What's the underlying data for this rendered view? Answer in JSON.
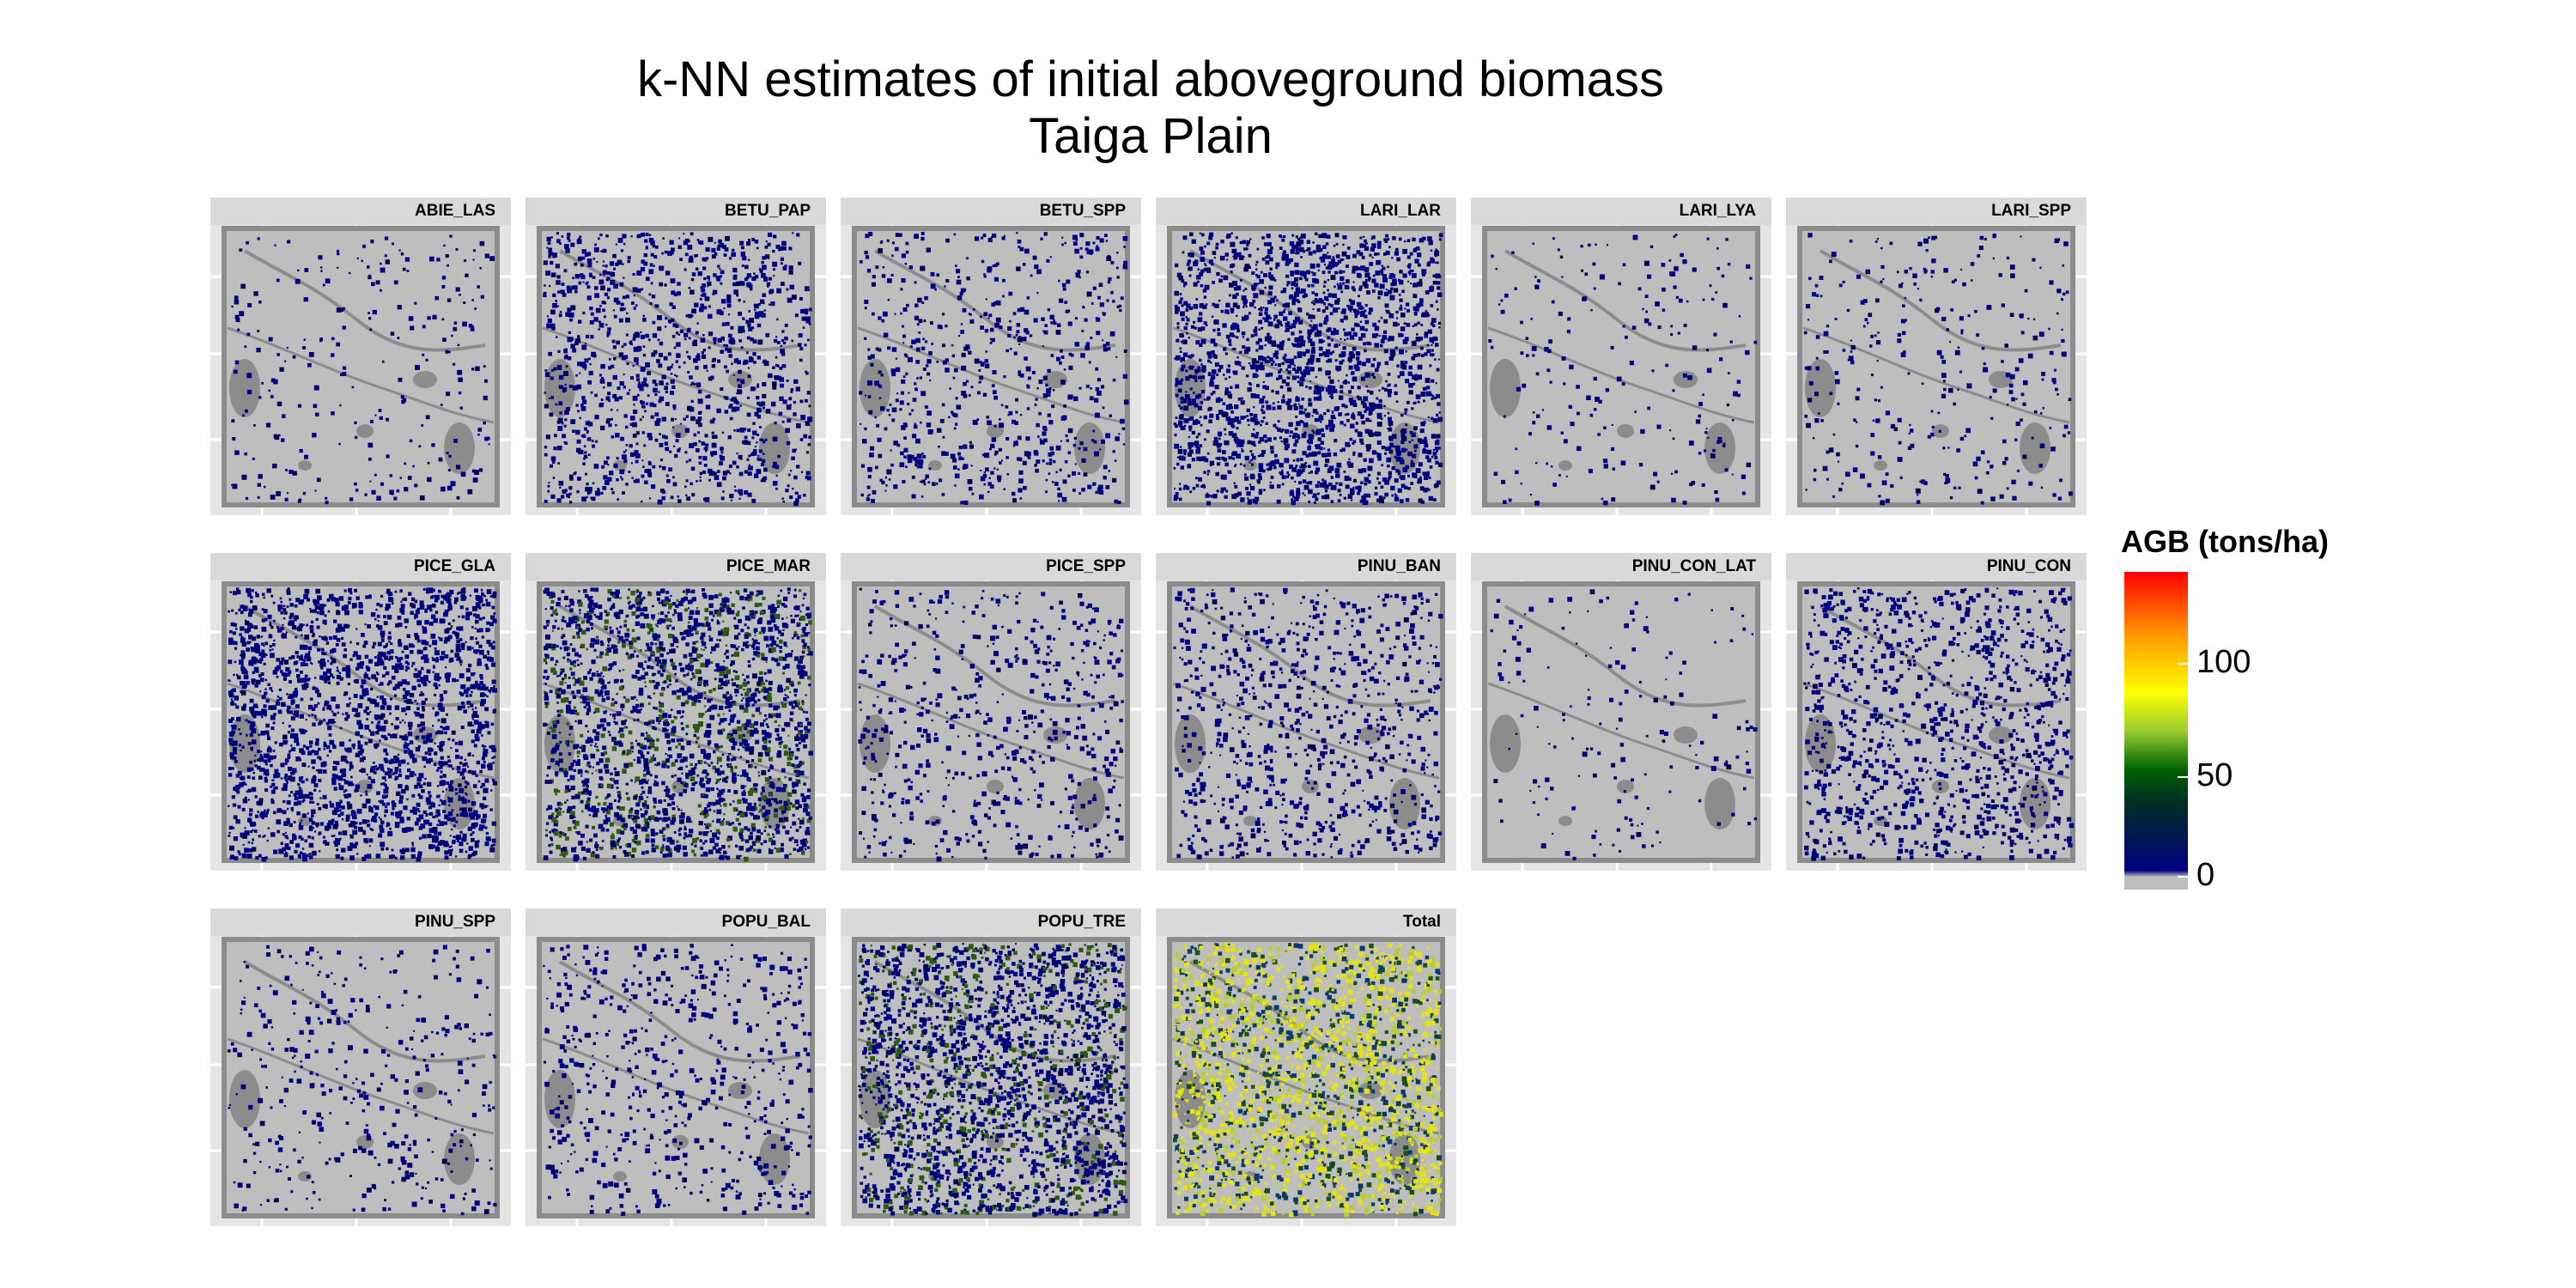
{
  "chart_data": {
    "type": "heatmap",
    "title": "k-NN estimates of initial aboveground biomass",
    "subtitle": "Taiga Plain",
    "panels": [
      {
        "name": "ABIE_LAS",
        "level": 0.08
      },
      {
        "name": "BETU_PAP",
        "level": 0.45
      },
      {
        "name": "BETU_SPP",
        "level": 0.25
      },
      {
        "name": "LARI_LAR",
        "level": 0.75
      },
      {
        "name": "LARI_LYA",
        "level": 0.06
      },
      {
        "name": "LARI_SPP",
        "level": 0.1
      },
      {
        "name": "PICE_GLA",
        "level": 0.8
      },
      {
        "name": "PICE_MAR",
        "level": 0.85
      },
      {
        "name": "PICE_SPP",
        "level": 0.2
      },
      {
        "name": "PINU_BAN",
        "level": 0.3
      },
      {
        "name": "PINU_CON_LAT",
        "level": 0.04
      },
      {
        "name": "PINU_CON",
        "level": 0.4
      },
      {
        "name": "PINU_SPP",
        "level": 0.12
      },
      {
        "name": "POPU_BAL",
        "level": 0.2
      },
      {
        "name": "POPU_TRE",
        "level": 0.85
      },
      {
        "name": "Total",
        "level": 0.95
      }
    ],
    "legend": {
      "title": "AGB (tons/ha)",
      "ticks": [
        "0",
        "50",
        "100"
      ],
      "tick_values": [
        0,
        50,
        100
      ],
      "range": [
        0,
        140
      ],
      "colors": [
        "#bebebe",
        "#000080",
        "#006400",
        "#ffff00",
        "#ff0000"
      ]
    },
    "colors": {
      "background": "#bebebe",
      "water": "#8c8c8c",
      "panel": "#e5e5e5",
      "strip": "#d9d9d9",
      "gridline": "#ffffff"
    }
  }
}
